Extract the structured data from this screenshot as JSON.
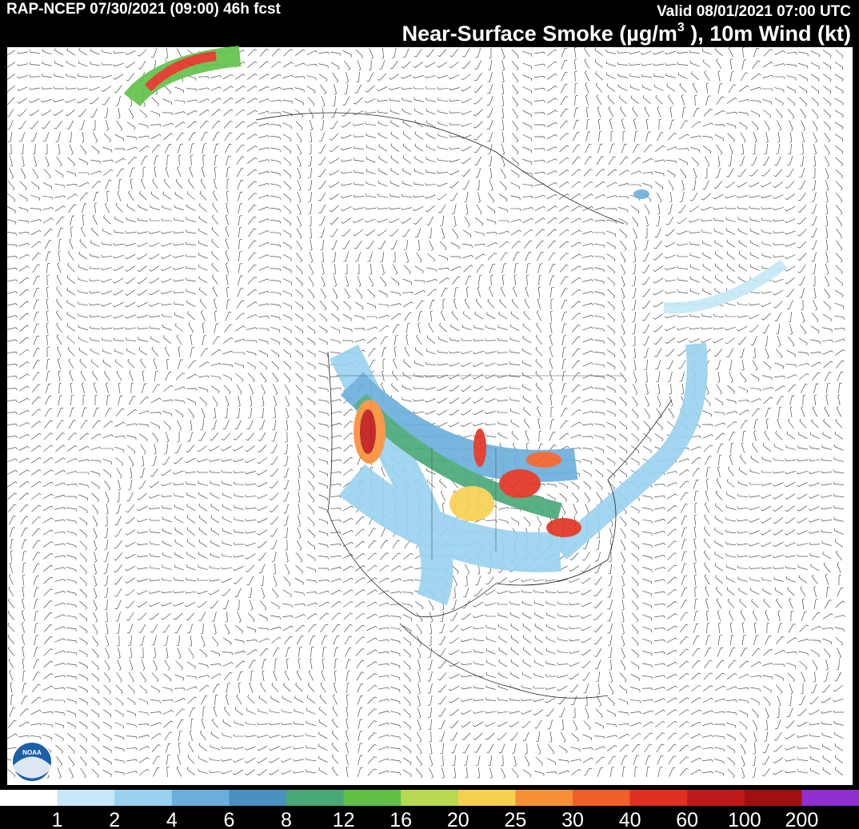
{
  "header": {
    "run": "RAP-NCEP 07/30/2021 (09:00) 46h fcst",
    "valid": "Valid 08/01/2021 07:00 UTC",
    "title_main": "Near-Surface Smoke (µg/m",
    "title_sup": "3",
    "title_end": " ), 10m Wind (kt)"
  },
  "legend": {
    "colors": [
      "#ffffff",
      "#c6e8f8",
      "#98d2f0",
      "#6aaedc",
      "#4a90c0",
      "#48a878",
      "#60c048",
      "#b8d850",
      "#f8d050",
      "#f89038",
      "#f06028",
      "#e03020",
      "#c01818",
      "#a01010",
      "#9030d0"
    ],
    "labels": [
      1,
      2,
      4,
      6,
      8,
      12,
      16,
      20,
      25,
      30,
      40,
      60,
      100,
      200
    ]
  },
  "logo": "NOAA"
}
